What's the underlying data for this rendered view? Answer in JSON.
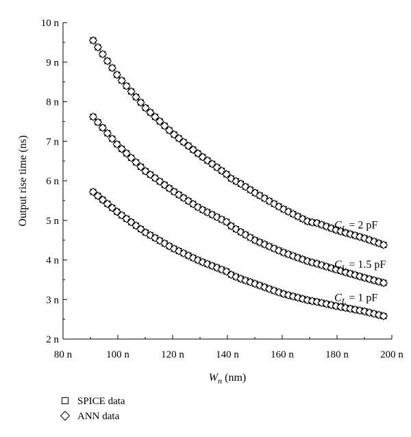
{
  "chart_data": {
    "type": "scatter",
    "xlabel_var": "W",
    "xlabel_sub": "n",
    "xlabel_unit": " (nm)",
    "ylabel": "Output rise time (ns)",
    "xlim": [
      80,
      200
    ],
    "ylim": [
      2,
      10
    ],
    "x_ticks": [
      80,
      100,
      120,
      140,
      160,
      180,
      200
    ],
    "x_tick_labels": [
      "80 n",
      "100 n",
      "120 n",
      "140 n",
      "160 n",
      "180 n",
      "200 n"
    ],
    "y_ticks": [
      2,
      3,
      4,
      5,
      6,
      7,
      8,
      9,
      10
    ],
    "y_tick_labels": [
      "2 n",
      "3 n",
      "4 n",
      "5 n",
      "6 n",
      "7 n",
      "8 n",
      "9 n",
      "10 n"
    ],
    "grid": false,
    "legend": {
      "placement": "bottom-left",
      "entries": [
        {
          "label": "SPICE data",
          "marker": "square"
        },
        {
          "label": "ANN data",
          "marker": "diamond"
        }
      ]
    },
    "curves": [
      {
        "var": "C",
        "sub": "L",
        "rest": " = 2 pF",
        "x": [
          91,
          100,
          110,
          120,
          130,
          140,
          141.5,
          145,
          150,
          160,
          170,
          172,
          180,
          190,
          197
        ],
        "y": [
          9.55,
          8.65,
          7.85,
          7.2,
          6.65,
          6.15,
          6.05,
          5.92,
          5.7,
          5.3,
          4.95,
          4.95,
          4.75,
          4.55,
          4.38
        ]
      },
      {
        "var": "C",
        "sub": "L",
        "rest": " = 1.5 pF",
        "x": [
          91,
          100,
          110,
          120,
          130,
          140,
          141.5,
          145,
          150,
          160,
          170,
          172,
          180,
          190,
          197
        ],
        "y": [
          7.62,
          6.9,
          6.25,
          5.75,
          5.3,
          4.95,
          4.85,
          4.7,
          4.5,
          4.2,
          3.95,
          3.92,
          3.75,
          3.55,
          3.42
        ]
      },
      {
        "var": "C",
        "sub": "L",
        "rest": " = 1 pF",
        "x": [
          91,
          100,
          110,
          120,
          130,
          140,
          141.5,
          145,
          150,
          160,
          170,
          172,
          180,
          190,
          197
        ],
        "y": [
          5.72,
          5.2,
          4.7,
          4.3,
          3.97,
          3.7,
          3.62,
          3.52,
          3.4,
          3.15,
          2.97,
          2.95,
          2.83,
          2.7,
          2.58
        ]
      }
    ]
  }
}
